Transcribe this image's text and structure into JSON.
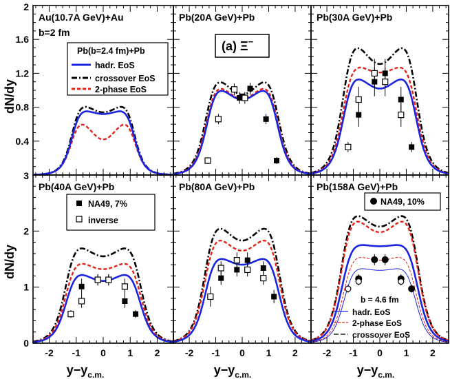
{
  "chart_data": {
    "type": "line",
    "common": {
      "xlabel": "y−y",
      "xlabel_sub": "c.m.",
      "ylabel": "dN/dy",
      "xlim": [
        -2.6,
        2.6
      ],
      "xticks": [
        "-2",
        "-1",
        "0",
        "1",
        "2"
      ],
      "top_row_yticks": [
        "0.4",
        "0.8",
        "1.2",
        "1.6"
      ],
      "top_row_ylim": [
        0.0,
        2.0
      ],
      "bottom_row_yticks": [
        "0",
        "1",
        "2"
      ],
      "bottom_row_ylim": [
        0.0,
        3.0
      ],
      "border_ticks": [
        "2",
        "3"
      ],
      "particle_label": "(a) Ξ",
      "particle_label_sup": "−"
    },
    "legend_top": {
      "title": "Pb(b=2.4 fm)+Pb",
      "entries": [
        "hadr. EoS",
        "crossover EoS",
        "2-phase EoS"
      ]
    },
    "panels": [
      {
        "title": "Au(10.7A GeV)+Au",
        "subtitle": "b=2 fm",
        "row": 0,
        "col": 0,
        "curves": {
          "hadr": {
            "h": 0.78,
            "c": 0.72,
            "w": 1.2
          },
          "cross": {
            "h": 0.85,
            "c": 0.74,
            "w": 1.2
          },
          "twoph": {
            "h": 0.67,
            "c": 0.42,
            "w": 1.22
          }
        },
        "data_filled": [],
        "data_open": []
      },
      {
        "title": "Pb(20A GeV)+Pb",
        "row": 0,
        "col": 1,
        "curves": {
          "hadr": {
            "h": 1.06,
            "c": 0.89,
            "w": 1.38
          },
          "cross": {
            "h": 1.18,
            "c": 0.95,
            "w": 1.42
          },
          "twoph": {
            "h": 1.09,
            "c": 0.9,
            "w": 1.4
          }
        },
        "data_filled": [
          {
            "x": -0.1,
            "y": 0.91,
            "err": 0.07
          },
          {
            "x": 0.3,
            "y": 1.02,
            "err": 0.07
          },
          {
            "x": 0.9,
            "y": 0.66,
            "err": 0.06
          },
          {
            "x": 1.3,
            "y": 0.17,
            "err": 0.04
          }
        ],
        "data_open": [
          {
            "x": -1.3,
            "y": 0.17,
            "err": 0.04
          },
          {
            "x": -0.9,
            "y": 0.66,
            "err": 0.06
          },
          {
            "x": -0.3,
            "y": 1.01,
            "err": 0.07
          },
          {
            "x": 0.1,
            "y": 0.91,
            "err": 0.07
          }
        ]
      },
      {
        "title": "Pb(30A GeV)+Pb",
        "row": 0,
        "col": 2,
        "curves": {
          "hadr": {
            "h": 1.2,
            "c": 1.02,
            "w": 1.42
          },
          "cross": {
            "h": 1.61,
            "c": 1.31,
            "w": 1.44
          },
          "twoph": {
            "h": 1.32,
            "c": 1.21,
            "w": 1.44
          }
        },
        "data_filled": [
          {
            "x": -0.8,
            "y": 0.71,
            "err": 0.14
          },
          {
            "x": -0.2,
            "y": 1.1,
            "err": 0.17
          },
          {
            "x": 0.2,
            "y": 1.2,
            "err": 0.17
          },
          {
            "x": 0.8,
            "y": 0.89,
            "err": 0.15
          },
          {
            "x": 1.2,
            "y": 0.33,
            "err": 0.06
          }
        ],
        "data_open": [
          {
            "x": -1.2,
            "y": 0.33,
            "err": 0.06
          },
          {
            "x": -0.8,
            "y": 0.89,
            "err": 0.15
          },
          {
            "x": -0.2,
            "y": 1.2,
            "err": 0.17
          },
          {
            "x": 0.2,
            "y": 1.1,
            "err": 0.17
          },
          {
            "x": 0.8,
            "y": 0.71,
            "err": 0.14
          }
        ]
      },
      {
        "title": "Pb(40A GeV)+Pb",
        "row": 1,
        "col": 0,
        "curves": {
          "hadr": {
            "h": 1.29,
            "c": 1.11,
            "w": 1.42
          },
          "cross": {
            "h": 1.79,
            "c": 1.55,
            "w": 1.44
          },
          "twoph": {
            "h": 1.49,
            "c": 1.32,
            "w": 1.44
          }
        },
        "data_filled": [
          {
            "x": -0.8,
            "y": 1.01,
            "err": 0.14
          },
          {
            "x": -0.2,
            "y": 1.13,
            "err": 0.1
          },
          {
            "x": 0.2,
            "y": 1.13,
            "err": 0.1
          },
          {
            "x": 0.8,
            "y": 0.75,
            "err": 0.12
          },
          {
            "x": 1.2,
            "y": 0.52,
            "err": 0.07
          }
        ],
        "data_open": [
          {
            "x": -1.2,
            "y": 0.52,
            "err": 0.07
          },
          {
            "x": -0.8,
            "y": 0.75,
            "err": 0.12
          },
          {
            "x": -0.2,
            "y": 1.13,
            "err": 0.1
          },
          {
            "x": 0.2,
            "y": 1.13,
            "err": 0.1
          },
          {
            "x": 0.8,
            "y": 1.01,
            "err": 0.14
          }
        ],
        "legend": {
          "filled": "NA49, 7%",
          "open": "inverse"
        }
      },
      {
        "title": "Pb(80A GeV)+Pb",
        "row": 1,
        "col": 1,
        "curves": {
          "hadr": {
            "h": 1.58,
            "c": 1.4,
            "w": 1.44
          },
          "cross": {
            "h": 2.18,
            "c": 1.83,
            "w": 1.46
          },
          "twoph": {
            "h": 1.95,
            "c": 1.65,
            "w": 1.46
          }
        },
        "data_filled": [
          {
            "x": -0.8,
            "y": 1.16,
            "err": 0.12
          },
          {
            "x": -0.2,
            "y": 1.31,
            "err": 0.12
          },
          {
            "x": 0.2,
            "y": 1.48,
            "err": 0.14
          },
          {
            "x": 0.8,
            "y": 1.34,
            "err": 0.12
          },
          {
            "x": 1.2,
            "y": 0.83,
            "err": 0.12
          }
        ],
        "data_open": [
          {
            "x": -1.2,
            "y": 0.83,
            "err": 0.18
          },
          {
            "x": -0.8,
            "y": 1.34,
            "err": 0.12
          },
          {
            "x": -0.2,
            "y": 1.48,
            "err": 0.14
          },
          {
            "x": 0.2,
            "y": 1.31,
            "err": 0.12
          },
          {
            "x": 0.8,
            "y": 1.16,
            "err": 0.12
          }
        ]
      },
      {
        "title": "Pb(158A GeV)+Pb",
        "row": 1,
        "col": 2,
        "curves": {
          "hadr": {
            "h": 1.78,
            "c": 1.73,
            "w": 1.48
          },
          "cross": {
            "h": 2.4,
            "c": 2.08,
            "w": 1.5
          },
          "twoph": {
            "h": 2.3,
            "c": 1.98,
            "w": 1.5
          },
          "hadr46": {
            "h": 1.36,
            "c": 1.3,
            "w": 1.4
          },
          "twoph46": {
            "h": 1.58,
            "c": 1.48,
            "w": 1.42
          }
        },
        "data_filled": [
          {
            "x": -0.8,
            "y": 1.15,
            "err": 0.08
          },
          {
            "x": -0.2,
            "y": 1.49,
            "err": 0.1
          },
          {
            "x": 0.2,
            "y": 1.49,
            "err": 0.1
          },
          {
            "x": 0.8,
            "y": 1.15,
            "err": 0.08
          },
          {
            "x": 1.2,
            "y": 0.97,
            "err": 0.07
          }
        ],
        "data_open": [
          {
            "x": -1.2,
            "y": 0.97,
            "err": 0.07
          },
          {
            "x": -0.8,
            "y": 1.1,
            "err": 0.07
          },
          {
            "x": 0.8,
            "y": 1.1,
            "err": 0.07
          }
        ],
        "legend": {
          "filled": "NA49, 10%"
        },
        "legend_b": {
          "title": "b = 4.6 fm",
          "entries": [
            "hadr. EoS",
            "2-phase EoS",
            "crossover EoS"
          ]
        }
      }
    ]
  },
  "colors": {
    "hadr": "#1a24e0",
    "cross": "#000000",
    "twoph": "#e2231a",
    "legend_bg": "#ffffff"
  }
}
